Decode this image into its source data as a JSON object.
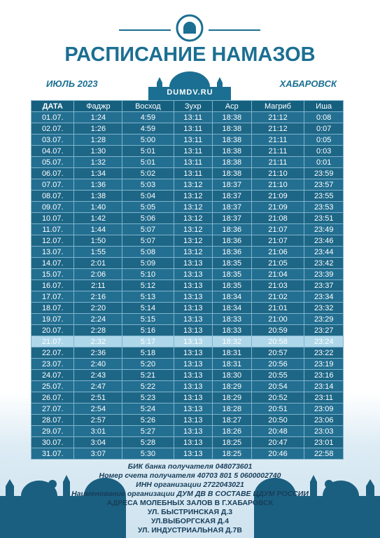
{
  "header": {
    "title": "РАСПИСАНИЕ НАМАЗОВ",
    "month": "ИЮЛЬ 2023",
    "city": "ХАБАРОВСК",
    "site": "DUMDV.RU"
  },
  "table": {
    "columns": [
      "ДАТА",
      "Фаджр",
      "Восход",
      "Зухр",
      "Аср",
      "Магриб",
      "Иша"
    ],
    "rows": [
      [
        "01.07.",
        "1:24",
        "4:59",
        "13:11",
        "18:38",
        "21:12",
        "0:08"
      ],
      [
        "02.07.",
        "1:26",
        "4:59",
        "13:11",
        "18:38",
        "21:12",
        "0:07"
      ],
      [
        "03.07.",
        "1:28",
        "5:00",
        "13:11",
        "18:38",
        "21:11",
        "0:05"
      ],
      [
        "04.07.",
        "1:30",
        "5:01",
        "13:11",
        "18:38",
        "21:11",
        "0:03"
      ],
      [
        "05.07.",
        "1:32",
        "5:01",
        "13:11",
        "18:38",
        "21:11",
        "0:01"
      ],
      [
        "06.07.",
        "1:34",
        "5:02",
        "13:11",
        "18:38",
        "21:10",
        "23:59"
      ],
      [
        "07.07.",
        "1:36",
        "5:03",
        "13:12",
        "18:37",
        "21:10",
        "23:57"
      ],
      [
        "08.07.",
        "1:38",
        "5:04",
        "13:12",
        "18:37",
        "21:09",
        "23:55"
      ],
      [
        "09.07.",
        "1:40",
        "5:05",
        "13:12",
        "18:37",
        "21:09",
        "23:53"
      ],
      [
        "10.07.",
        "1:42",
        "5:06",
        "13:12",
        "18:37",
        "21:08",
        "23:51"
      ],
      [
        "11.07.",
        "1:44",
        "5:07",
        "13:12",
        "18:36",
        "21:07",
        "23:49"
      ],
      [
        "12.07.",
        "1:50",
        "5:07",
        "13:12",
        "18:36",
        "21:07",
        "23:46"
      ],
      [
        "13.07.",
        "1:55",
        "5:08",
        "13:12",
        "18:36",
        "21:06",
        "23:44"
      ],
      [
        "14.07.",
        "2:01",
        "5:09",
        "13:13",
        "18:35",
        "21:05",
        "23:42"
      ],
      [
        "15.07.",
        "2:06",
        "5:10",
        "13:13",
        "18:35",
        "21:04",
        "23:39"
      ],
      [
        "16.07.",
        "2:11",
        "5:12",
        "13:13",
        "18:35",
        "21:03",
        "23:37"
      ],
      [
        "17.07.",
        "2:16",
        "5:13",
        "13:13",
        "18:34",
        "21:02",
        "23:34"
      ],
      [
        "18.07.",
        "2:20",
        "5:14",
        "13:13",
        "18:34",
        "21:01",
        "23:32"
      ],
      [
        "19.07.",
        "2:24",
        "5:15",
        "13:13",
        "18:33",
        "21:00",
        "23:29"
      ],
      [
        "20.07.",
        "2:28",
        "5:16",
        "13:13",
        "18:33",
        "20:59",
        "23:27"
      ],
      [
        "21.07.",
        "2:32",
        "5:17",
        "13:13",
        "18:32",
        "20:58",
        "23:24"
      ],
      [
        "22.07.",
        "2:36",
        "5:18",
        "13:13",
        "18:31",
        "20:57",
        "23:22"
      ],
      [
        "23.07.",
        "2:40",
        "5:20",
        "13:13",
        "18:31",
        "20:56",
        "23:19"
      ],
      [
        "24.07.",
        "2:43",
        "5:21",
        "13:13",
        "18:30",
        "20:55",
        "23:16"
      ],
      [
        "25.07.",
        "2:47",
        "5:22",
        "13:13",
        "18:29",
        "20:54",
        "23:14"
      ],
      [
        "26.07.",
        "2:51",
        "5:23",
        "13:13",
        "18:29",
        "20:52",
        "23:11"
      ],
      [
        "27.07.",
        "2:54",
        "5:24",
        "13:13",
        "18:28",
        "20:51",
        "23:09"
      ],
      [
        "28.07.",
        "2:57",
        "5:26",
        "13:13",
        "18:27",
        "20:50",
        "23:06"
      ],
      [
        "29.07.",
        "3:01",
        "5:27",
        "13:13",
        "18:26",
        "20:48",
        "23:03"
      ],
      [
        "30.07.",
        "3:04",
        "5:28",
        "13:13",
        "18:25",
        "20:47",
        "23:01"
      ],
      [
        "31.07.",
        "3:07",
        "5:30",
        "13:13",
        "18:25",
        "20:46",
        "22:58"
      ]
    ]
  },
  "footer": {
    "bank": [
      {
        "label": "БИК банка получателя",
        "value": "048073601"
      },
      {
        "label": "Номер счета получателя",
        "value": "40703 801 5 0600002740"
      },
      {
        "label": "ИНН организации",
        "value": "2722043021"
      },
      {
        "label": "Наименование организации",
        "value": "ДУМ ДВ В СОСТАВЕ ЦДУМ РОССИИ"
      }
    ],
    "addresses_title": "АДРЕСА МОЛЕБНЫХ ЗАЛОВ В Г.ХАБАРОВСК",
    "addresses": [
      "УЛ. БЫСТРИНСКАЯ Д.3",
      "УЛ.ВЫБОРГСКАЯ Д.4",
      "УЛ. ИНДУСТРИАЛЬНАЯ Д.7В"
    ]
  }
}
